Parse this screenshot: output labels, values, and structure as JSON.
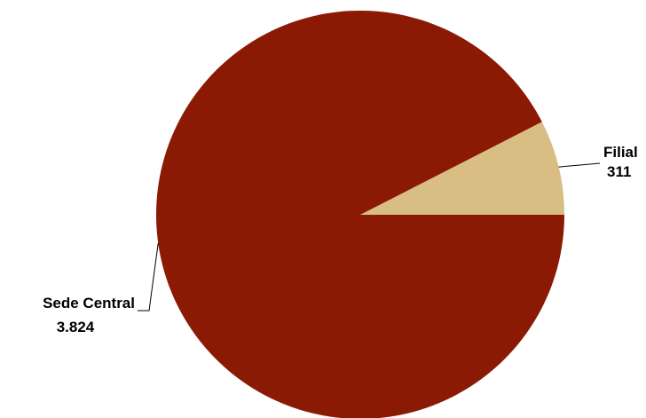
{
  "chart_data": {
    "type": "pie",
    "title": "",
    "categories": [
      "Sede Central",
      "Filial"
    ],
    "values": [
      3824,
      311
    ],
    "value_labels": [
      "3.824",
      "311"
    ],
    "colors": [
      "#8B1A05",
      "#D9BE83"
    ],
    "start_angle_deg": 0,
    "direction": "counterclockwise",
    "legend": "none"
  }
}
